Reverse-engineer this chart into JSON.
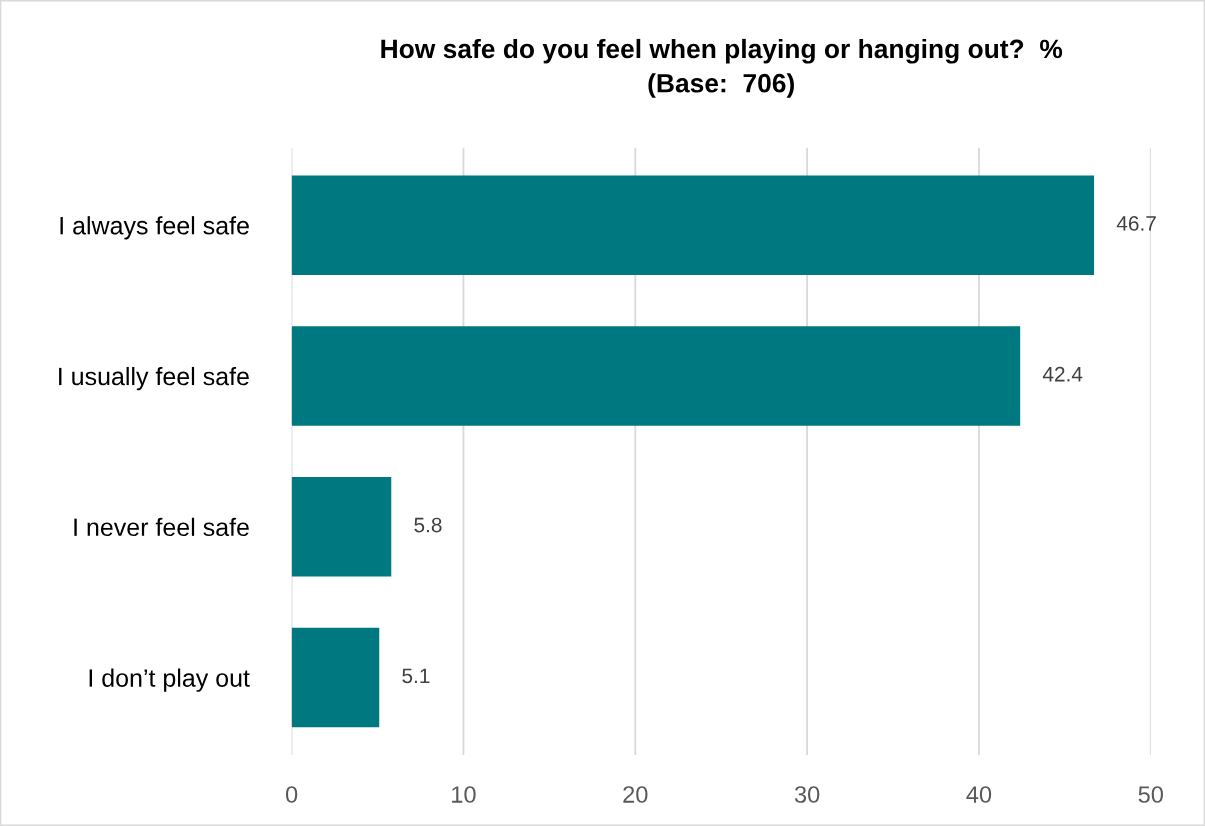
{
  "chart_data": {
    "type": "bar",
    "orientation": "horizontal",
    "title": "How safe do you feel when playing or hanging out?  %\n(Base:  706)",
    "categories": [
      "I always feel safe",
      "I usually feel safe",
      "I never feel safe",
      "I don’t play out"
    ],
    "values": [
      46.7,
      42.4,
      5.8,
      5.1
    ],
    "color": "#00787f",
    "xlim": [
      0,
      50
    ],
    "xticks": [
      0,
      10,
      20,
      30,
      40,
      50
    ],
    "grid": "x",
    "data_labels": true
  }
}
